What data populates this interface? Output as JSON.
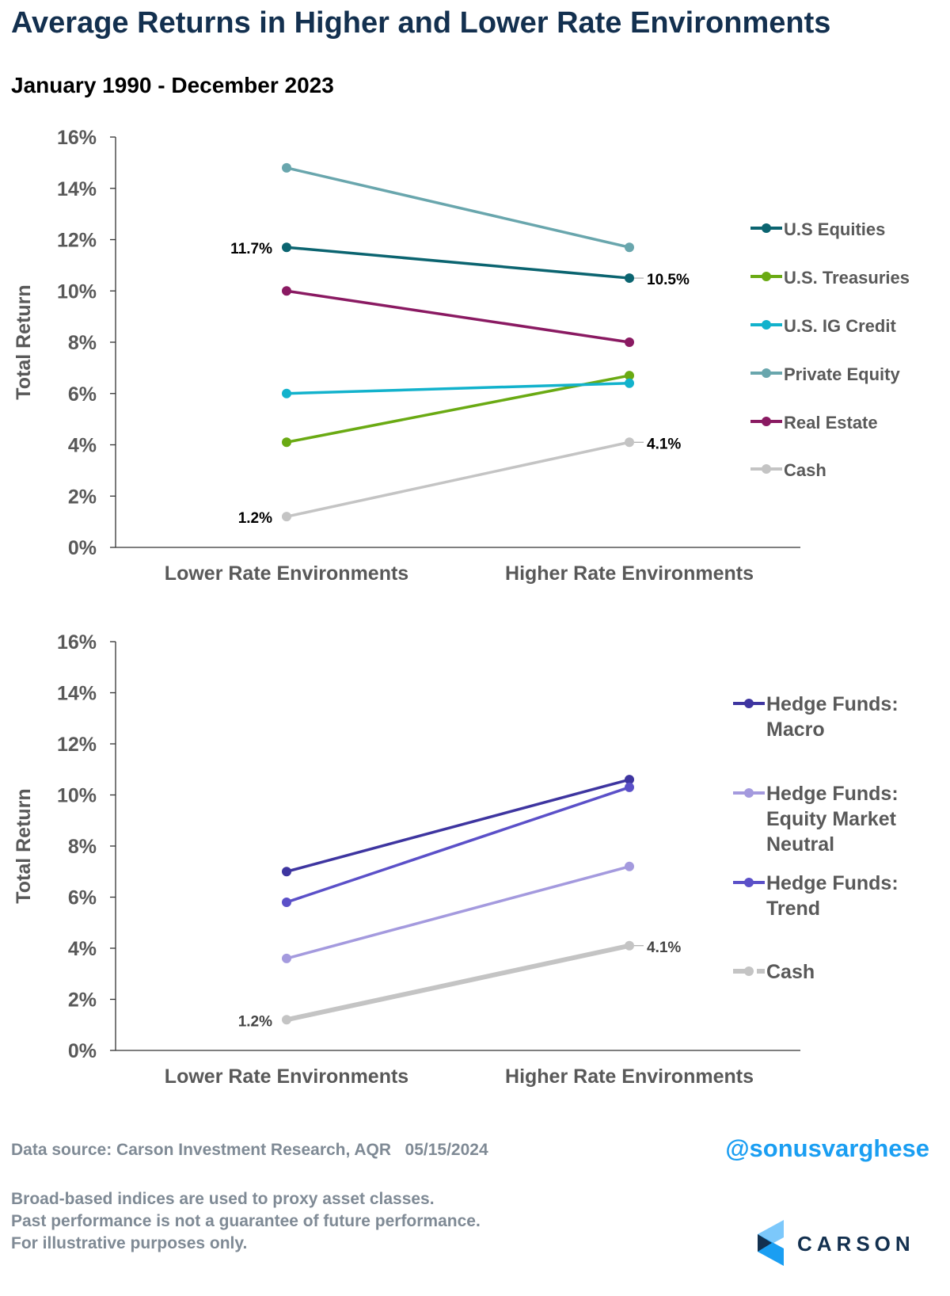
{
  "header": {
    "title": "Average Returns in Higher and Lower Rate Environments",
    "subtitle": "January 1990 - December 2023"
  },
  "chart_data": [
    {
      "type": "line",
      "categories": [
        "Lower Rate Environments",
        "Higher Rate Environments"
      ],
      "ylabel": "Total Return",
      "ylim": [
        0,
        16
      ],
      "yticks": [
        "0%",
        "2%",
        "4%",
        "6%",
        "8%",
        "10%",
        "12%",
        "14%",
        "16%"
      ],
      "legend_position": "right",
      "series": [
        {
          "name": "U.S Equities",
          "values": [
            11.7,
            10.5
          ],
          "color": "#0b6470",
          "labels": [
            "11.7%",
            "10.5%"
          ]
        },
        {
          "name": "U.S. Treasuries",
          "values": [
            4.1,
            6.7
          ],
          "color": "#6aaa13",
          "labels": [
            "",
            ""
          ]
        },
        {
          "name": "U.S. IG Credit",
          "values": [
            6.0,
            6.4
          ],
          "color": "#12b2cc",
          "labels": [
            "",
            ""
          ]
        },
        {
          "name": "Private Equity",
          "values": [
            14.8,
            11.7
          ],
          "color": "#69a6ad",
          "labels": [
            "",
            ""
          ]
        },
        {
          "name": "Real Estate",
          "values": [
            10.0,
            8.0
          ],
          "color": "#8a1a62",
          "labels": [
            "",
            ""
          ]
        },
        {
          "name": "Cash",
          "values": [
            1.2,
            4.1
          ],
          "color": "#c4c4c4",
          "labels": [
            "1.2%",
            "4.1%"
          ]
        }
      ]
    },
    {
      "type": "line",
      "categories": [
        "Lower Rate Environments",
        "Higher Rate Environments"
      ],
      "ylabel": "Total Return",
      "ylim": [
        0,
        16
      ],
      "yticks": [
        "0%",
        "2%",
        "4%",
        "6%",
        "8%",
        "10%",
        "12%",
        "14%",
        "16%"
      ],
      "legend_position": "right",
      "series": [
        {
          "name": "Hedge Funds: Macro",
          "legend_lines": [
            "Hedge Funds:",
            "Macro"
          ],
          "values": [
            7.0,
            10.6
          ],
          "color": "#3e35a0",
          "labels": [
            "",
            ""
          ]
        },
        {
          "name": "Hedge Funds: Equity Market Neutral",
          "legend_lines": [
            "Hedge Funds:",
            "Equity Market",
            "Neutral"
          ],
          "values": [
            3.6,
            7.2
          ],
          "color": "#a49ade",
          "labels": [
            "",
            ""
          ]
        },
        {
          "name": "Hedge Funds: Trend",
          "legend_lines": [
            "Hedge Funds:",
            "Trend"
          ],
          "values": [
            5.8,
            10.3
          ],
          "color": "#5b50c8",
          "labels": [
            "",
            ""
          ]
        },
        {
          "name": "Cash",
          "legend_lines": [
            "Cash"
          ],
          "values": [
            1.2,
            4.1
          ],
          "color": "#c4c4c4",
          "labels": [
            "1.2%",
            "4.1%"
          ]
        }
      ]
    }
  ],
  "footer": {
    "source": "Data source: Carson Investment Research, AQR   05/15/2024",
    "handle": "@sonusvarghese",
    "disclaimer": [
      "Broad-based indices are used to proxy asset classes.",
      "Past performance is not a guarantee of future performance.",
      "For illustrative purposes only."
    ],
    "logo_text": "CARSON"
  }
}
